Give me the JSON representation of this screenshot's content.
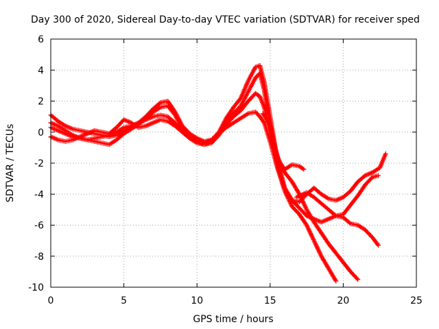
{
  "chart_data": {
    "type": "scatter",
    "title": "Day 300 of 2020, Sidereal Day-to-day VTEC variation (SDTVAR) for receiver sped",
    "xlabel": "GPS time / hours",
    "ylabel": "SDTVAR / TECUs",
    "xlim": [
      0,
      25
    ],
    "ylim": [
      -10,
      6
    ],
    "x_ticks": [
      0,
      5,
      10,
      15,
      20,
      25
    ],
    "y_ticks": [
      -10,
      -8,
      -6,
      -4,
      -2,
      0,
      2,
      4,
      6
    ],
    "x_tick_labels": [
      "0",
      "5",
      "10",
      "15",
      "20",
      "25"
    ],
    "y_tick_labels": [
      "-10",
      "-8",
      "-6",
      "-4",
      "-2",
      "0",
      "2",
      "4",
      "6"
    ],
    "grid": true,
    "marker": "+",
    "color": "#ff0000",
    "series": [
      {
        "x": [
          0.0,
          0.5,
          1.0,
          1.5,
          2.0,
          2.5,
          3.0,
          3.5,
          4.0,
          4.5,
          5.0,
          5.5,
          6.0,
          6.5,
          7.0,
          7.5,
          8.0,
          8.5,
          9.0,
          9.5,
          10.0,
          10.5,
          11.0,
          11.5,
          12.0,
          12.5,
          13.0,
          13.5,
          14.0,
          14.3,
          14.6,
          15.0,
          15.5,
          16.0,
          16.5,
          17.0,
          17.5,
          18.0,
          18.5,
          19.0,
          19.5,
          20.0,
          20.5,
          21.0,
          21.5,
          22.0,
          22.5,
          22.9
        ],
        "y": [
          1.1,
          0.7,
          0.4,
          0.2,
          0.1,
          0.0,
          -0.1,
          -0.2,
          -0.3,
          -0.2,
          0.1,
          0.3,
          0.6,
          1.0,
          1.5,
          1.9,
          2.0,
          1.3,
          0.4,
          -0.1,
          -0.4,
          -0.6,
          -0.5,
          0.0,
          0.9,
          1.6,
          2.2,
          3.3,
          4.2,
          4.3,
          3.2,
          1.0,
          -1.8,
          -3.6,
          -4.4,
          -4.5,
          -4.0,
          -3.6,
          -4.0,
          -4.3,
          -4.4,
          -4.2,
          -3.8,
          -3.2,
          -2.8,
          -2.6,
          -2.3,
          -1.4
        ]
      },
      {
        "x": [
          0.0,
          0.5,
          1.0,
          1.5,
          2.0,
          2.5,
          3.0,
          3.5,
          4.0,
          4.5,
          5.0,
          5.5,
          6.0,
          6.5,
          7.0,
          7.5,
          8.0,
          8.5,
          9.0,
          9.5,
          10.0,
          10.5,
          11.0,
          11.5,
          12.0,
          12.5,
          13.0,
          13.5,
          14.0,
          14.3,
          14.6,
          15.0,
          15.5,
          16.0,
          16.5,
          17.0,
          17.5,
          18.0,
          18.5,
          19.0,
          19.5,
          20.0,
          20.5,
          21.0,
          21.5,
          22.0,
          22.4
        ],
        "y": [
          0.6,
          0.4,
          0.1,
          -0.2,
          -0.4,
          -0.5,
          -0.6,
          -0.7,
          -0.8,
          -0.5,
          -0.1,
          0.2,
          0.5,
          0.9,
          1.3,
          1.6,
          1.7,
          1.1,
          0.2,
          -0.3,
          -0.6,
          -0.8,
          -0.7,
          -0.2,
          0.6,
          1.2,
          1.7,
          2.6,
          3.5,
          3.8,
          2.7,
          0.4,
          -2.2,
          -3.6,
          -4.4,
          -4.9,
          -5.4,
          -5.6,
          -5.8,
          -5.6,
          -5.4,
          -5.5,
          -5.9,
          -6.0,
          -6.3,
          -6.8,
          -7.3
        ]
      },
      {
        "x": [
          0.0,
          0.5,
          1.0,
          1.5,
          2.0,
          2.5,
          3.0,
          3.5,
          4.0,
          4.5,
          5.0,
          5.5,
          6.0,
          6.5,
          7.0,
          7.5,
          8.0,
          8.5,
          9.0,
          9.5,
          10.0,
          10.5,
          11.0,
          11.5,
          12.0,
          12.5,
          13.0,
          13.5,
          14.0,
          14.3,
          14.6,
          15.0,
          15.5,
          16.0,
          16.5,
          17.0,
          17.5,
          18.0,
          18.5,
          19.0,
          19.5,
          20.0,
          20.5,
          21.0
        ],
        "y": [
          0.3,
          0.1,
          -0.1,
          -0.3,
          -0.4,
          -0.5,
          -0.4,
          -0.3,
          -0.2,
          0.0,
          0.3,
          0.4,
          0.6,
          0.8,
          1.0,
          1.1,
          1.0,
          0.6,
          0.0,
          -0.4,
          -0.7,
          -0.8,
          -0.6,
          -0.1,
          0.5,
          1.0,
          1.4,
          2.0,
          2.5,
          2.3,
          1.6,
          0.0,
          -1.6,
          -2.6,
          -3.2,
          -4.0,
          -5.0,
          -5.8,
          -6.5,
          -7.2,
          -7.8,
          -8.4,
          -9.0,
          -9.5
        ]
      },
      {
        "x": [
          0.0,
          0.5,
          1.0,
          1.5,
          2.0,
          2.5,
          3.0,
          3.5,
          4.0,
          4.5,
          5.0,
          5.5,
          6.0,
          6.5,
          7.0,
          7.5,
          8.0,
          8.5,
          9.0,
          9.5,
          10.0,
          10.5,
          11.0,
          11.5,
          12.0,
          12.5,
          13.0,
          13.5,
          14.0,
          14.3,
          14.6,
          15.0,
          15.5,
          16.0,
          16.5,
          17.0,
          17.5,
          18.0,
          18.5,
          19.0,
          19.5
        ],
        "y": [
          -0.3,
          -0.5,
          -0.6,
          -0.5,
          -0.3,
          -0.1,
          0.1,
          0.0,
          -0.1,
          0.3,
          0.8,
          0.6,
          0.3,
          0.4,
          0.6,
          0.8,
          0.7,
          0.4,
          0.0,
          -0.4,
          -0.6,
          -0.7,
          -0.5,
          -0.1,
          0.3,
          0.6,
          0.9,
          1.2,
          1.3,
          1.0,
          0.6,
          -0.6,
          -2.3,
          -3.8,
          -4.8,
          -5.3,
          -6.0,
          -7.0,
          -8.0,
          -8.8,
          -9.6
        ]
      },
      {
        "x": [
          14.5,
          15.0,
          15.3,
          15.6,
          16.0,
          16.5,
          17.0,
          17.3
        ],
        "y": [
          1.2,
          0.5,
          -0.9,
          -1.9,
          -2.4,
          -2.1,
          -2.2,
          -2.4
        ]
      },
      {
        "x": [
          16.8,
          17.5,
          18.0,
          18.5,
          19.0,
          19.5,
          20.0,
          20.5,
          21.0,
          21.5,
          22.0,
          22.4
        ],
        "y": [
          -4.2,
          -3.9,
          -4.2,
          -4.6,
          -5.0,
          -5.4,
          -5.3,
          -4.7,
          -4.1,
          -3.4,
          -2.9,
          -2.8
        ]
      }
    ]
  }
}
